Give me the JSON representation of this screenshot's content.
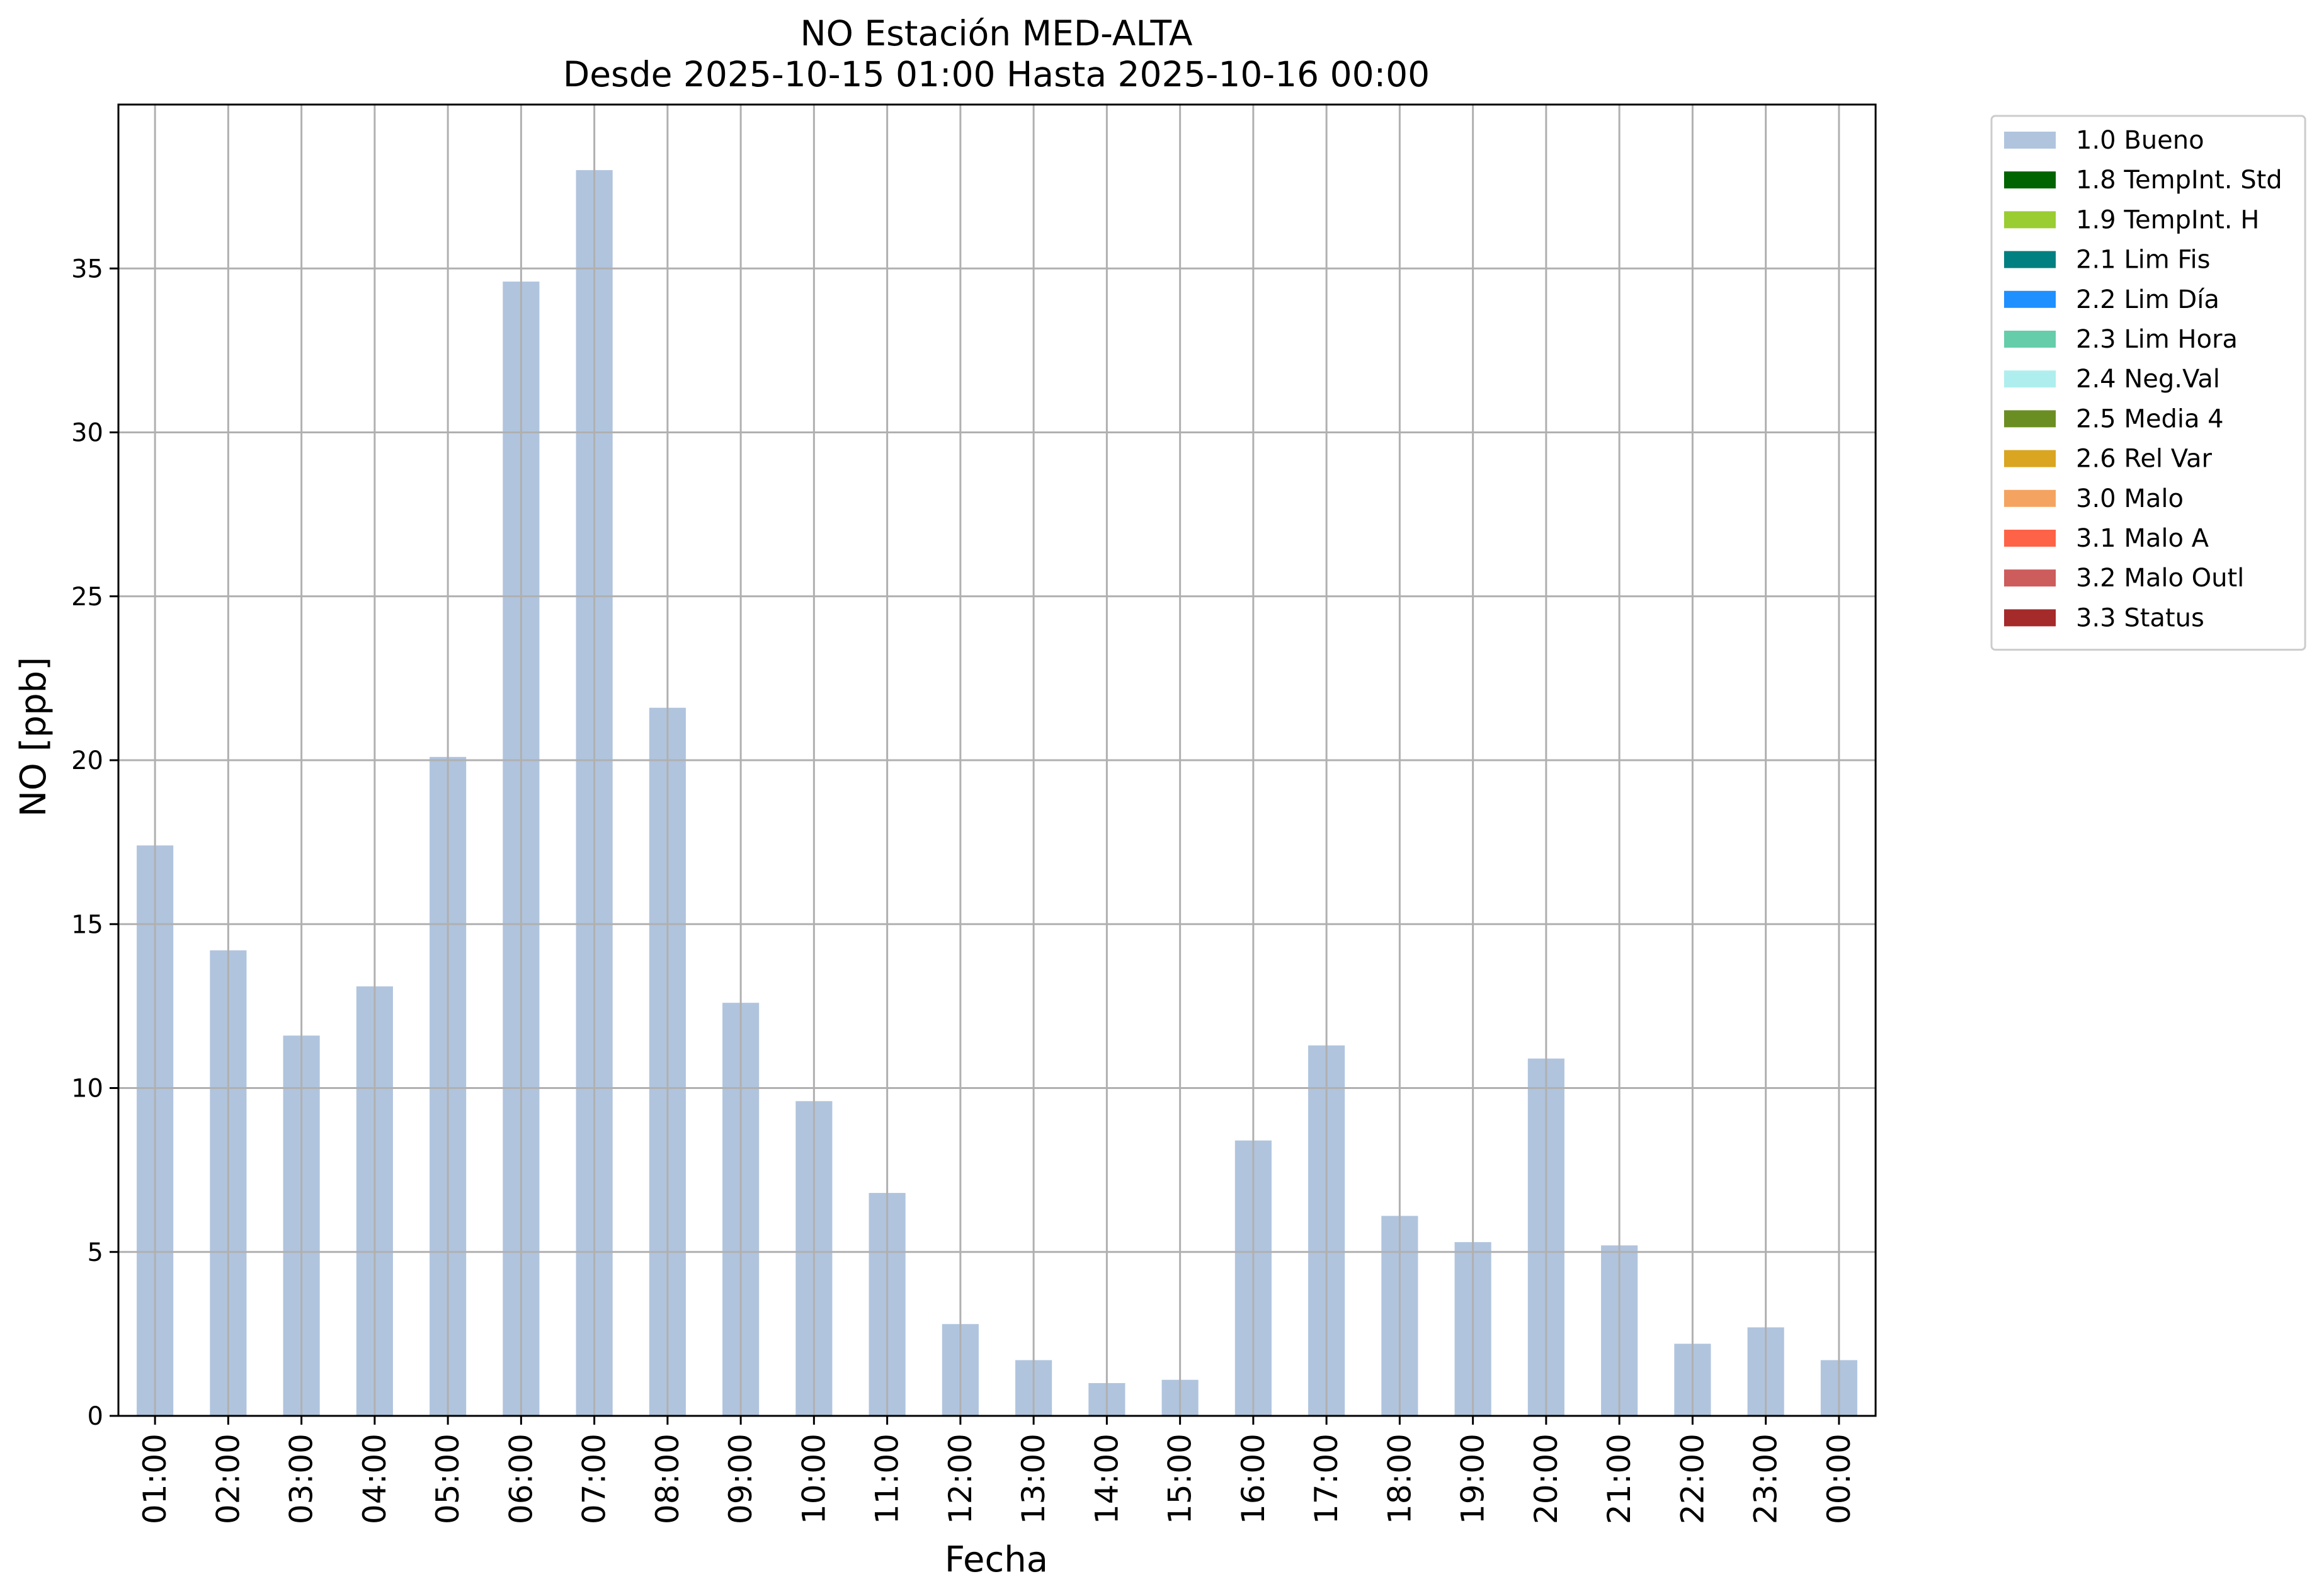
{
  "chart_data": {
    "type": "bar",
    "title": "NO Estación MED-ALTA",
    "subtitle": "Desde 2025-10-15 01:00 Hasta 2025-10-16 00:00",
    "xlabel": "Fecha",
    "ylabel": "NO [ppb]",
    "ylim": [
      0,
      40
    ],
    "yticks": [
      0,
      5,
      10,
      15,
      20,
      25,
      30,
      35
    ],
    "grid": true,
    "legend_position": "outside right, top",
    "categories": [
      "01:00",
      "02:00",
      "03:00",
      "04:00",
      "05:00",
      "06:00",
      "07:00",
      "08:00",
      "09:00",
      "10:00",
      "11:00",
      "12:00",
      "13:00",
      "14:00",
      "15:00",
      "16:00",
      "17:00",
      "18:00",
      "19:00",
      "20:00",
      "21:00",
      "22:00",
      "23:00",
      "00:00"
    ],
    "series": [
      {
        "name": "1.0 Bueno",
        "color": "#b0c4de",
        "values": [
          17.4,
          14.2,
          11.6,
          13.1,
          20.1,
          34.6,
          38.0,
          21.6,
          12.6,
          9.6,
          6.8,
          2.8,
          1.7,
          1.0,
          1.1,
          8.4,
          11.3,
          6.1,
          5.3,
          10.9,
          5.2,
          2.2,
          2.7,
          1.7
        ]
      }
    ],
    "legend": [
      {
        "label": "1.0 Bueno",
        "color": "#b0c4de"
      },
      {
        "label": "1.8 TempInt. Std",
        "color": "#006400"
      },
      {
        "label": "1.9 TempInt. H",
        "color": "#9acd32"
      },
      {
        "label": "2.1 Lim Fis",
        "color": "#008080"
      },
      {
        "label": "2.2 Lim Día",
        "color": "#1e90ff"
      },
      {
        "label": "2.3 Lim Hora",
        "color": "#66cdaa"
      },
      {
        "label": "2.4 Neg.Val",
        "color": "#afeeee"
      },
      {
        "label": "2.5 Media 4",
        "color": "#6b8e23"
      },
      {
        "label": "2.6 Rel Var",
        "color": "#daa520"
      },
      {
        "label": "3.0 Malo",
        "color": "#f4a460"
      },
      {
        "label": "3.1 Malo A",
        "color": "#ff6347"
      },
      {
        "label": "3.2 Malo Outl",
        "color": "#cd5c5c"
      },
      {
        "label": "3.3 Status",
        "color": "#a52a2a"
      }
    ]
  }
}
